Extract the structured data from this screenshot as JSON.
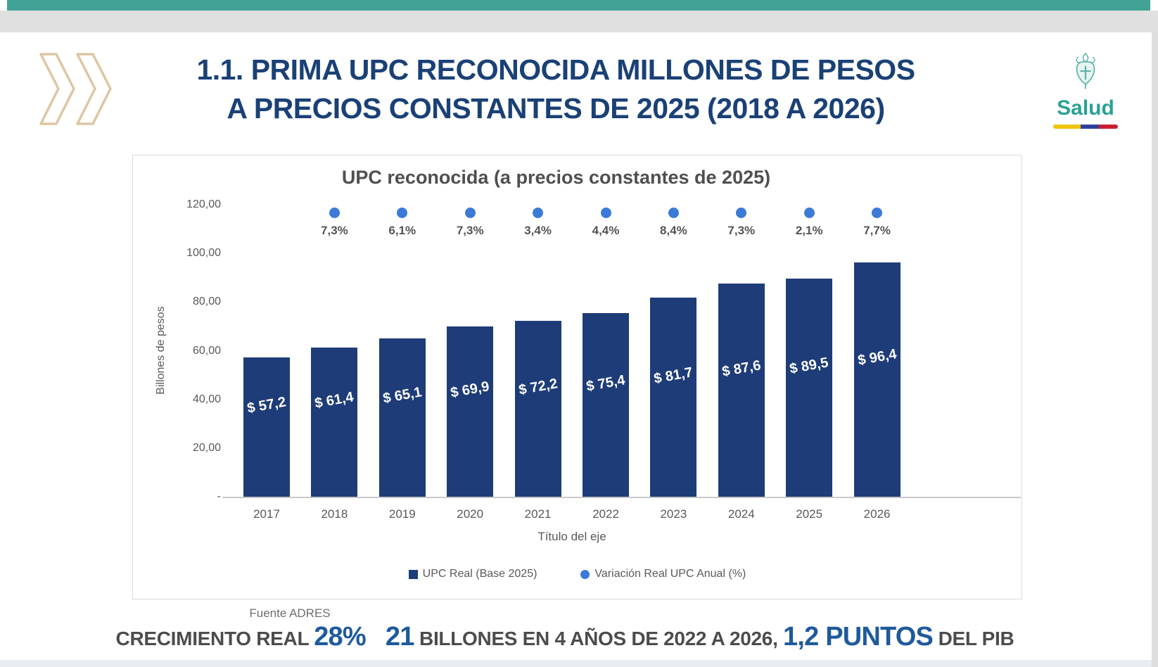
{
  "slide": {
    "title_line1": "1.1. PRIMA UPC RECONOCIDA MILLONES DE PESOS",
    "title_line2": "A PRECIOS CONSTANTES DE 2025 (2018 A 2026)",
    "logo": {
      "text": "Salud",
      "icon": "ministry-crest-icon",
      "flag_colors": [
        "#f0c400",
        "#2f3f9b",
        "#cc1f2f"
      ]
    },
    "source": "Fuente ADRES",
    "summary": [
      {
        "text": "CRECIMIENTO REAL ",
        "highlight": false,
        "gap": false
      },
      {
        "text": "28%",
        "highlight": true,
        "gap": false
      },
      {
        "text": "21",
        "highlight": true,
        "gap": true
      },
      {
        "text": " BILLONES EN 4 AÑOS DE 2022 A 2026, ",
        "highlight": false,
        "gap": false
      },
      {
        "text": "1,2 PUNTOS",
        "highlight": true,
        "gap": false
      },
      {
        "text": " DEL PIB",
        "highlight": false,
        "gap": false
      }
    ],
    "colors": {
      "accent_teal": "#41a396",
      "title_navy": "#1a4176",
      "chevron_tan": "#ddc6a3",
      "highlight_blue": "#1e5a9c",
      "logo_teal": "#2ba195"
    }
  },
  "chart_data": {
    "type": "bar",
    "title": "UPC reconocida (a precios constantes de 2025)",
    "xlabel": "Título del eje",
    "ylabel": "Billones de pesos",
    "categories": [
      "2017",
      "2018",
      "2019",
      "2020",
      "2021",
      "2022",
      "2023",
      "2024",
      "2025",
      "2026"
    ],
    "ylim": [
      0,
      120
    ],
    "grid": false,
    "legend_position": "bottom",
    "yticks": [
      {
        "value": 120,
        "label": "120,00"
      },
      {
        "value": 100,
        "label": "100,00"
      },
      {
        "value": 80,
        "label": "80,00"
      },
      {
        "value": 60,
        "label": "60,00"
      },
      {
        "value": 40,
        "label": "40,00"
      },
      {
        "value": 20,
        "label": "20,00"
      },
      {
        "value": 0,
        "label": "-"
      }
    ],
    "series": [
      {
        "name": "UPC Real (Base 2025)",
        "type": "bar",
        "marker": "square",
        "color": "#1e3c78",
        "values": [
          57.2,
          61.4,
          65.1,
          69.9,
          72.2,
          75.4,
          81.7,
          87.6,
          89.5,
          96.4
        ],
        "labels": [
          "$ 57,2",
          "$ 61,4",
          "$ 65,1",
          "$ 69,9",
          "$ 72,2",
          "$ 75,4",
          "$ 81,7",
          "$ 87,6",
          "$ 89,5",
          "$ 96,4"
        ]
      },
      {
        "name": "Variación Real UPC Anual (%)",
        "type": "scatter",
        "marker": "circle",
        "color": "#3c7ad8",
        "values": [
          null,
          7.3,
          6.1,
          7.3,
          3.4,
          4.4,
          8.4,
          7.3,
          2.1,
          7.7
        ],
        "labels": [
          null,
          "7,3%",
          "6,1%",
          "7,3%",
          "3,4%",
          "4,4%",
          "8,4%",
          "7,3%",
          "2,1%",
          "7,7%"
        ]
      }
    ]
  }
}
